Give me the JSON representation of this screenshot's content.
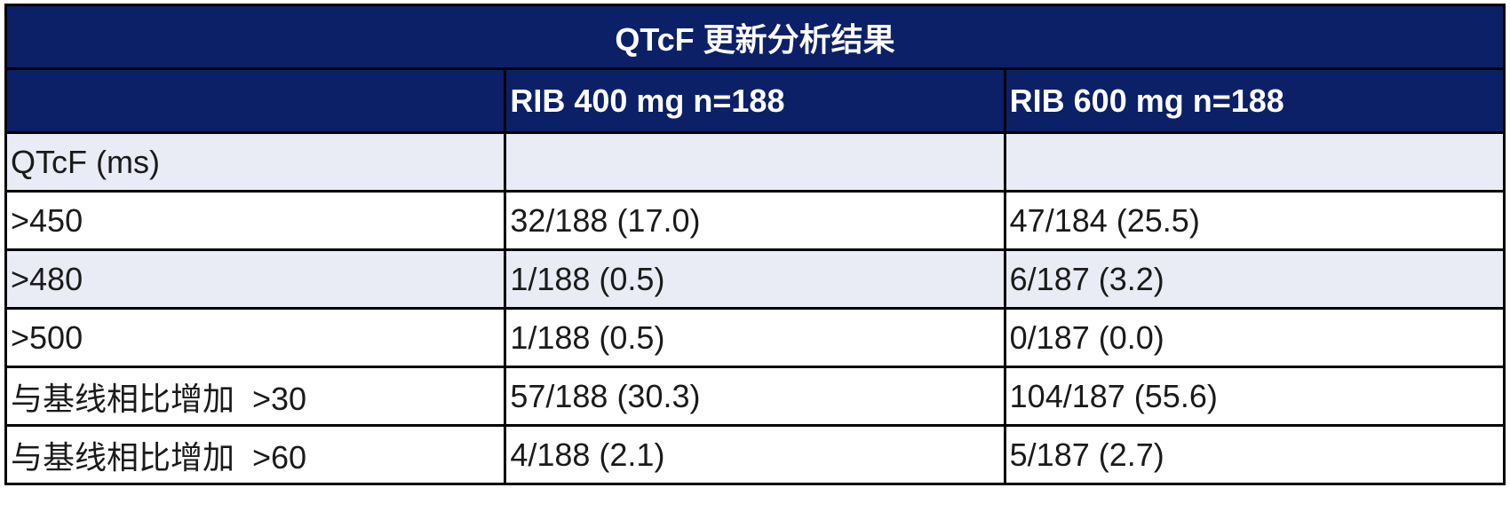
{
  "table": {
    "title": "QTcF 更新分析结果",
    "header": [
      "RIB 400 mg n=188",
      "RIB 600 mg n=188"
    ],
    "rows": [
      [
        "QTcF (ms)"
      ],
      [
        ">450",
        "32/188 (17.0)",
        "47/184 (25.5)"
      ],
      [
        ">480",
        "1/188 (0.5)",
        "6/187 (3.2)"
      ],
      [
        ">500",
        "1/188 (0.5)",
        "0/187 (0.0)"
      ],
      [
        "与基线相比增加  >30",
        "57/188 (30.3)",
        "104/187 (55.6)"
      ],
      [
        "与基线相比增加  >60",
        "4/188 (2.1)",
        "5/187 (2.7)"
      ]
    ]
  }
}
